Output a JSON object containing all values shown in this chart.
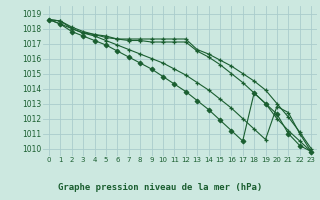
{
  "bg_color": "#cce8e0",
  "grid_color": "#aacccc",
  "line_color": "#1a5e30",
  "title": "Graphe pression niveau de la mer (hPa)",
  "title_color": "#1a5e30",
  "xlim": [
    -0.5,
    23.5
  ],
  "ylim": [
    1009.5,
    1019.5
  ],
  "yticks": [
    1010,
    1011,
    1012,
    1013,
    1014,
    1015,
    1016,
    1017,
    1018,
    1019
  ],
  "xticks": [
    0,
    1,
    2,
    3,
    4,
    5,
    6,
    7,
    8,
    9,
    10,
    11,
    12,
    13,
    14,
    15,
    16,
    17,
    18,
    19,
    20,
    21,
    22,
    23
  ],
  "series": [
    {
      "x": [
        0,
        1,
        2,
        3,
        4,
        5,
        6,
        7,
        8,
        9,
        10,
        11,
        12,
        13,
        14,
        15,
        16,
        17,
        18,
        19,
        20,
        21,
        22,
        23
      ],
      "y": [
        1018.6,
        1018.5,
        1018.1,
        1017.8,
        1017.6,
        1017.4,
        1017.3,
        1017.3,
        1017.3,
        1017.3,
        1017.3,
        1017.3,
        1017.3,
        1016.6,
        1016.3,
        1015.9,
        1015.5,
        1015.0,
        1014.5,
        1013.9,
        1013.0,
        1012.1,
        1011.1,
        1010.0
      ],
      "marker": "+"
    },
    {
      "x": [
        0,
        1,
        2,
        3,
        4,
        5,
        6,
        7,
        8,
        9,
        10,
        11,
        12,
        13,
        14,
        15,
        16,
        17,
        18,
        19,
        20,
        21,
        22,
        23
      ],
      "y": [
        1018.6,
        1018.5,
        1018.0,
        1017.7,
        1017.6,
        1017.5,
        1017.3,
        1017.2,
        1017.2,
        1017.1,
        1017.1,
        1017.1,
        1017.1,
        1016.5,
        1016.1,
        1015.6,
        1015.0,
        1014.4,
        1013.7,
        1013.0,
        1012.0,
        1011.2,
        1010.5,
        1009.8
      ],
      "marker": "+"
    },
    {
      "x": [
        0,
        1,
        2,
        3,
        4,
        5,
        6,
        7,
        8,
        9,
        10,
        11,
        12,
        13,
        14,
        15,
        16,
        17,
        18,
        19,
        20,
        21,
        22,
        23
      ],
      "y": [
        1018.6,
        1018.3,
        1018.0,
        1017.7,
        1017.5,
        1017.2,
        1016.9,
        1016.6,
        1016.3,
        1016.0,
        1015.7,
        1015.3,
        1014.9,
        1014.4,
        1013.9,
        1013.3,
        1012.7,
        1012.0,
        1011.3,
        1010.6,
        1012.8,
        1012.4,
        1011.0,
        1009.8
      ],
      "marker": "+"
    },
    {
      "x": [
        0,
        1,
        2,
        3,
        4,
        5,
        6,
        7,
        8,
        9,
        10,
        11,
        12,
        13,
        14,
        15,
        16,
        17,
        18,
        19,
        20,
        21,
        22,
        23
      ],
      "y": [
        1018.6,
        1018.3,
        1017.8,
        1017.5,
        1017.2,
        1016.9,
        1016.5,
        1016.1,
        1015.7,
        1015.3,
        1014.8,
        1014.3,
        1013.8,
        1013.2,
        1012.6,
        1011.9,
        1011.2,
        1010.5,
        1013.7,
        1013.0,
        1012.3,
        1011.0,
        1010.2,
        1009.8
      ],
      "marker": "D"
    }
  ]
}
